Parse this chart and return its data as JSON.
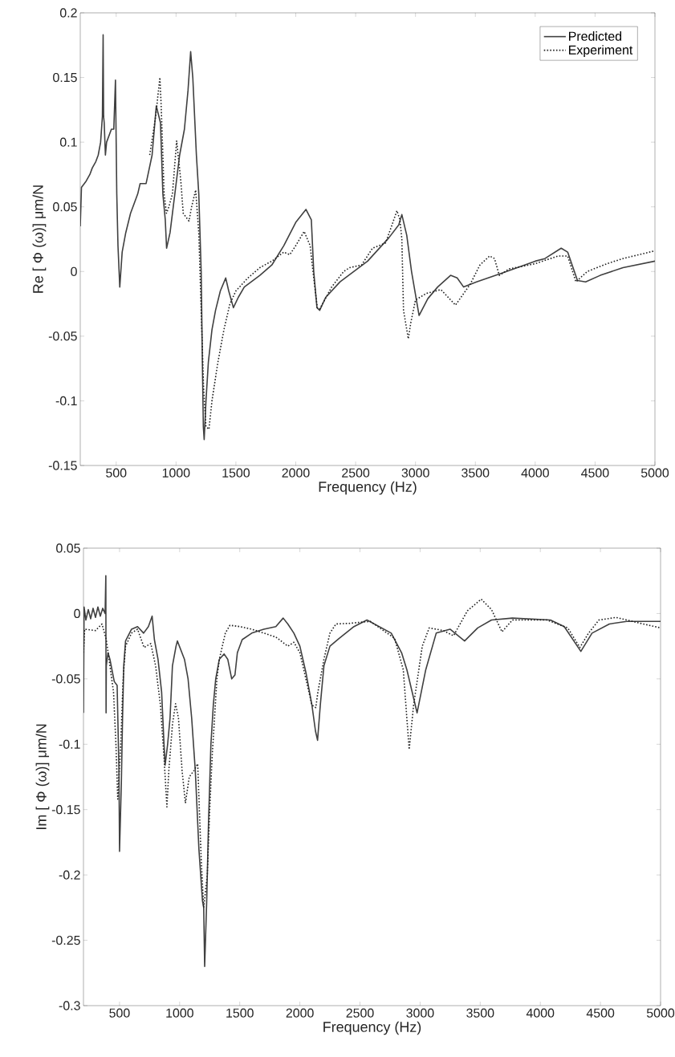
{
  "chart_data": [
    {
      "type": "line",
      "xlabel": "Frequency (Hz)",
      "ylabel": "Re [ Φ (ω)] μm/N",
      "xlim": [
        200,
        5000
      ],
      "ylim": [
        -0.15,
        0.2
      ],
      "xticks": [
        500,
        1000,
        1500,
        2000,
        2500,
        3000,
        3500,
        4000,
        4500,
        5000
      ],
      "yticks": [
        -0.15,
        -0.1,
        -0.05,
        0,
        0.05,
        0.1,
        0.15,
        0.2
      ],
      "legend": "top right",
      "series": [
        {
          "name": "Predicted",
          "color": "#404040",
          "line_style": "solid",
          "x": [
            200,
            210,
            250,
            280,
            300,
            330,
            350,
            370,
            385,
            391,
            395,
            400,
            410,
            420,
            440,
            460,
            480,
            494,
            500,
            505,
            515,
            530,
            550,
            580,
            620,
            680,
            700,
            750,
            800,
            835,
            870,
            890,
            910,
            921,
            950,
            990,
            1030,
            1070,
            1100,
            1122,
            1140,
            1170,
            1190,
            1210,
            1220,
            1228,
            1235,
            1250,
            1270,
            1300,
            1330,
            1370,
            1415,
            1440,
            1479,
            1520,
            1570,
            1700,
            1800,
            1900,
            2000,
            2085,
            2130,
            2150,
            2177,
            2200,
            2250,
            2370,
            2600,
            2777,
            2860,
            2886,
            2927,
            2967,
            3030,
            3103,
            3185,
            3293,
            3348,
            3402,
            3510,
            3728,
            4000,
            4081,
            4217,
            4271,
            4353,
            4421,
            4543,
            4733,
            5000
          ],
          "values": [
            0.035,
            0.065,
            0.07,
            0.075,
            0.08,
            0.085,
            0.09,
            0.1,
            0.12,
            0.183,
            0.12,
            0.115,
            0.09,
            0.1,
            0.105,
            0.11,
            0.11,
            0.148,
            0.1,
            0.06,
            0.02,
            -0.012,
            0.015,
            0.03,
            0.045,
            0.06,
            0.068,
            0.068,
            0.09,
            0.128,
            0.115,
            0.06,
            0.04,
            0.018,
            0.03,
            0.06,
            0.09,
            0.11,
            0.14,
            0.17,
            0.15,
            0.09,
            0.06,
            0.0,
            -0.07,
            -0.12,
            -0.13,
            -0.1,
            -0.07,
            -0.045,
            -0.03,
            -0.015,
            -0.005,
            -0.015,
            -0.028,
            -0.02,
            -0.012,
            -0.003,
            0.005,
            0.02,
            0.038,
            0.048,
            0.04,
            0.0,
            -0.028,
            -0.03,
            -0.02,
            -0.008,
            0.008,
            0.026,
            0.036,
            0.044,
            0.028,
            0.0,
            -0.034,
            -0.021,
            -0.012,
            -0.003,
            -0.005,
            -0.012,
            -0.008,
            -0.001,
            0.008,
            0.01,
            0.018,
            0.015,
            -0.007,
            -0.008,
            -0.003,
            0.003,
            0.008
          ]
        },
        {
          "name": "Experiment",
          "color": "#202020",
          "line_style": "dotted",
          "x": [
            780,
            830,
            865,
            875,
            890,
            900,
            920,
            940,
            970,
            1005,
            1040,
            1060,
            1108,
            1130,
            1164,
            1190,
            1210,
            1230,
            1250,
            1275,
            1300,
            1350,
            1400,
            1450,
            1500,
            1600,
            1700,
            1800,
            1900,
            1950,
            2000,
            2070,
            2120,
            2150,
            2180,
            2200,
            2300,
            2400,
            2450,
            2550,
            2641,
            2750,
            2800,
            2845,
            2870,
            2886,
            2900,
            2940,
            2960,
            3000,
            3090,
            3212,
            3334,
            3456,
            3538,
            3619,
            3660,
            3700,
            3782,
            4000,
            4190,
            4271,
            4340,
            4435,
            4598,
            4733,
            5000
          ],
          "values": [
            0.09,
            0.12,
            0.15,
            0.13,
            0.09,
            0.06,
            0.045,
            0.05,
            0.06,
            0.101,
            0.07,
            0.045,
            0.039,
            0.05,
            0.063,
            0.03,
            -0.03,
            -0.09,
            -0.12,
            -0.122,
            -0.1,
            -0.07,
            -0.045,
            -0.025,
            -0.015,
            -0.005,
            0.003,
            0.008,
            0.015,
            0.013,
            0.02,
            0.031,
            0.02,
            -0.005,
            -0.028,
            -0.029,
            -0.012,
            0.0,
            0.003,
            0.005,
            0.018,
            0.022,
            0.035,
            0.047,
            0.04,
            0.025,
            -0.03,
            -0.052,
            -0.04,
            -0.022,
            -0.017,
            -0.014,
            -0.026,
            -0.01,
            0.005,
            0.012,
            0.01,
            -0.003,
            0.002,
            0.006,
            0.012,
            0.012,
            -0.008,
            0.0,
            0.006,
            0.01,
            0.016
          ]
        }
      ]
    },
    {
      "type": "line",
      "xlabel": "Frequency (Hz)",
      "ylabel": "Im [ Φ (ω)] μm/N",
      "xlim": [
        200,
        5000
      ],
      "ylim": [
        -0.3,
        0.05
      ],
      "xticks": [
        500,
        1000,
        1500,
        2000,
        2500,
        3000,
        3500,
        4000,
        4500,
        5000
      ],
      "yticks": [
        -0.3,
        -0.25,
        -0.2,
        -0.15,
        -0.1,
        -0.05,
        0,
        0.05
      ],
      "series": [
        {
          "color": "#404040",
          "line_style": "solid",
          "x": [
            200,
            205,
            220,
            240,
            260,
            280,
            300,
            320,
            340,
            360,
            380,
            386,
            388,
            390,
            404,
            420,
            456,
            480,
            495,
            500,
            515,
            525,
            535,
            550,
            600,
            650,
            700,
            740,
            771,
            790,
            820,
            850,
            870,
            879,
            900,
            920,
            940,
            970,
            981,
            1040,
            1070,
            1100,
            1130,
            1160,
            1190,
            1200,
            1208,
            1225,
            1240,
            1260,
            1280,
            1300,
            1330,
            1370,
            1400,
            1433,
            1460,
            1480,
            1520,
            1600,
            1700,
            1800,
            1861,
            1900,
            1950,
            2000,
            2050,
            2100,
            2130,
            2147,
            2170,
            2200,
            2250,
            2327,
            2450,
            2558,
            2760,
            2846,
            2890,
            2975,
            3047,
            3134,
            3249,
            3370,
            3479,
            3594,
            3767,
            4084,
            4199,
            4337,
            4430,
            4574,
            4718,
            5000
          ],
          "values": [
            -0.076,
            0.005,
            -0.005,
            0.003,
            -0.004,
            0.004,
            -0.003,
            0.005,
            -0.002,
            0.004,
            0.0,
            0.029,
            -0.076,
            -0.04,
            -0.03,
            -0.035,
            -0.052,
            -0.055,
            -0.12,
            -0.182,
            -0.13,
            -0.08,
            -0.04,
            -0.021,
            -0.012,
            -0.01,
            -0.015,
            -0.01,
            -0.002,
            -0.02,
            -0.035,
            -0.06,
            -0.1,
            -0.116,
            -0.1,
            -0.08,
            -0.04,
            -0.025,
            -0.021,
            -0.035,
            -0.05,
            -0.08,
            -0.12,
            -0.18,
            -0.22,
            -0.225,
            -0.27,
            -0.22,
            -0.16,
            -0.1,
            -0.07,
            -0.05,
            -0.035,
            -0.031,
            -0.035,
            -0.05,
            -0.047,
            -0.03,
            -0.02,
            -0.015,
            -0.012,
            -0.01,
            -0.0035,
            -0.008,
            -0.015,
            -0.025,
            -0.045,
            -0.07,
            -0.09,
            -0.097,
            -0.07,
            -0.04,
            -0.025,
            -0.019,
            -0.01,
            -0.005,
            -0.015,
            -0.03,
            -0.043,
            -0.076,
            -0.043,
            -0.015,
            -0.012,
            -0.021,
            -0.011,
            -0.005,
            -0.0035,
            -0.005,
            -0.01,
            -0.029,
            -0.015,
            -0.008,
            -0.006,
            -0.006
          ]
        },
        {
          "color": "#202020",
          "line_style": "dotted",
          "x": [
            200,
            210,
            300,
            354,
            390,
            420,
            450,
            470,
            485,
            510,
            530,
            550,
            600,
            650,
            704,
            760,
            800,
            840,
            870,
            894,
            910,
            940,
            966,
            990,
            1020,
            1048,
            1080,
            1120,
            1150,
            1180,
            1200,
            1230,
            1250,
            1270,
            1290,
            1310,
            1330,
            1380,
            1418,
            1500,
            1600,
            1700,
            1800,
            1900,
            1950,
            2000,
            2050,
            2100,
            2132,
            2150,
            2200,
            2250,
            2300,
            2414,
            2586,
            2788,
            2860,
            2909,
            2946,
            3018,
            3076,
            3191,
            3278,
            3393,
            3508,
            3594,
            3681,
            3767,
            4055,
            4228,
            4329,
            4401,
            4487,
            4631,
            4833,
            5000
          ],
          "values": [
            -0.03,
            -0.012,
            -0.013,
            -0.008,
            -0.02,
            -0.04,
            -0.06,
            -0.1,
            -0.142,
            -0.1,
            -0.05,
            -0.025,
            -0.015,
            -0.012,
            -0.026,
            -0.023,
            -0.04,
            -0.07,
            -0.11,
            -0.148,
            -0.12,
            -0.085,
            -0.069,
            -0.08,
            -0.12,
            -0.145,
            -0.125,
            -0.12,
            -0.115,
            -0.19,
            -0.225,
            -0.2,
            -0.15,
            -0.11,
            -0.08,
            -0.05,
            -0.035,
            -0.015,
            -0.009,
            -0.01,
            -0.012,
            -0.015,
            -0.018,
            -0.025,
            -0.022,
            -0.03,
            -0.05,
            -0.07,
            -0.072,
            -0.06,
            -0.035,
            -0.015,
            -0.008,
            -0.0075,
            -0.006,
            -0.019,
            -0.043,
            -0.104,
            -0.07,
            -0.025,
            -0.011,
            -0.013,
            -0.017,
            0.002,
            0.011,
            0.003,
            -0.014,
            -0.005,
            -0.005,
            -0.011,
            -0.026,
            -0.015,
            -0.005,
            -0.003,
            -0.0075,
            -0.011
          ]
        }
      ]
    }
  ]
}
